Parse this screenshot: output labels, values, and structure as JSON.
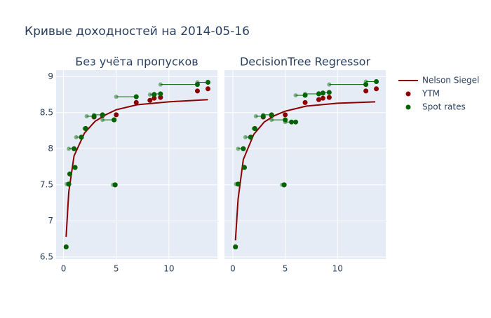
{
  "title": "Кривые доходностей на 2014-05-16",
  "chart_data": [
    {
      "type": "line",
      "title": "Без учёта пропусков",
      "xlim": [
        -0.7,
        14.6
      ],
      "ylim": [
        6.47,
        9.09
      ],
      "xticks": [
        0,
        5,
        10
      ],
      "yticks": [
        6.5,
        7,
        7.5,
        8,
        8.5,
        9
      ],
      "show_ytick_labels": true,
      "grid": true,
      "series": [
        {
          "name": "Nelson Siegel",
          "color": "#8b0000",
          "mode": "line",
          "x": [
            0.25,
            0.5,
            1,
            2,
            3,
            4,
            5,
            7,
            10,
            13.7
          ],
          "values": [
            6.78,
            7.4,
            7.9,
            8.22,
            8.38,
            8.47,
            8.54,
            8.61,
            8.65,
            8.68
          ]
        },
        {
          "name": "YTM",
          "color": "#8b0000",
          "mode": "markers",
          "x": [
            0.25,
            0.5,
            0.6,
            1.0,
            1.1,
            1.7,
            2.1,
            2.9,
            3.7,
            4.8,
            4.9,
            5.0,
            6.9,
            8.2,
            8.6,
            9.2,
            12.7,
            13.7
          ],
          "values": [
            6.64,
            7.51,
            7.65,
            8.0,
            7.74,
            8.16,
            8.28,
            8.44,
            8.46,
            8.4,
            7.5,
            8.47,
            8.64,
            8.67,
            8.7,
            8.71,
            8.8,
            8.83
          ]
        },
        {
          "name": "Spot rates",
          "color": "#006400",
          "mode": "markers",
          "x": [
            0.25,
            0.5,
            0.6,
            1.0,
            1.1,
            1.7,
            2.1,
            2.9,
            3.7,
            4.8,
            4.9,
            6.9,
            8.6,
            9.2,
            12.7,
            13.7
          ],
          "x_from": [
            0.25,
            0.3,
            0.6,
            0.5,
            1.1,
            1.2,
            2.0,
            2.2,
            2.9,
            3.7,
            4.7,
            5.0,
            8.2,
            8.6,
            9.2,
            12.7
          ],
          "values": [
            6.64,
            7.51,
            7.65,
            8.0,
            7.74,
            8.16,
            8.28,
            8.45,
            8.47,
            8.4,
            7.5,
            8.72,
            8.75,
            8.76,
            8.89,
            8.92
          ]
        }
      ]
    },
    {
      "type": "line",
      "title": "DecisionTree Regressor",
      "xlim": [
        -0.8,
        14.6
      ],
      "ylim": [
        6.47,
        9.09
      ],
      "xticks": [
        0,
        5,
        10
      ],
      "yticks": [
        6.5,
        7,
        7.5,
        8,
        8.5,
        9
      ],
      "show_ytick_labels": false,
      "grid": true,
      "series": [
        {
          "name": "Nelson Siegel",
          "color": "#8b0000",
          "mode": "line",
          "x": [
            0.25,
            0.5,
            1,
            2,
            3,
            4,
            5,
            7,
            10,
            13.6
          ],
          "values": [
            6.73,
            7.3,
            7.85,
            8.2,
            8.37,
            8.46,
            8.52,
            8.59,
            8.63,
            8.65
          ]
        },
        {
          "name": "YTM",
          "color": "#8b0000",
          "mode": "markers",
          "x": [
            0.25,
            0.5,
            1.0,
            1.1,
            1.7,
            2.1,
            2.9,
            3.7,
            4.9,
            5.0,
            6.9,
            8.2,
            8.6,
            9.2,
            12.7,
            13.7
          ],
          "values": [
            6.64,
            7.51,
            8.0,
            7.74,
            8.16,
            8.28,
            8.44,
            8.46,
            7.5,
            8.47,
            8.64,
            8.68,
            8.7,
            8.71,
            8.8,
            8.83
          ]
        },
        {
          "name": "Spot rates",
          "color": "#006400",
          "mode": "markers",
          "x": [
            0.25,
            0.5,
            1.0,
            1.1,
            1.7,
            2.1,
            2.9,
            3.7,
            4.9,
            5.0,
            5.6,
            6.0,
            6.9,
            8.2,
            8.6,
            9.2,
            12.7,
            13.7
          ],
          "x_from": [
            0.25,
            0.3,
            0.5,
            1.1,
            1.2,
            2.0,
            2.2,
            2.9,
            4.7,
            3.7,
            5.0,
            5.6,
            6.0,
            6.9,
            8.2,
            8.6,
            9.2,
            12.7
          ],
          "values": [
            6.64,
            7.51,
            8.0,
            7.74,
            8.16,
            8.28,
            8.45,
            8.47,
            7.5,
            8.4,
            8.37,
            8.37,
            8.74,
            8.76,
            8.77,
            8.78,
            8.89,
            8.93
          ]
        }
      ]
    }
  ]
}
